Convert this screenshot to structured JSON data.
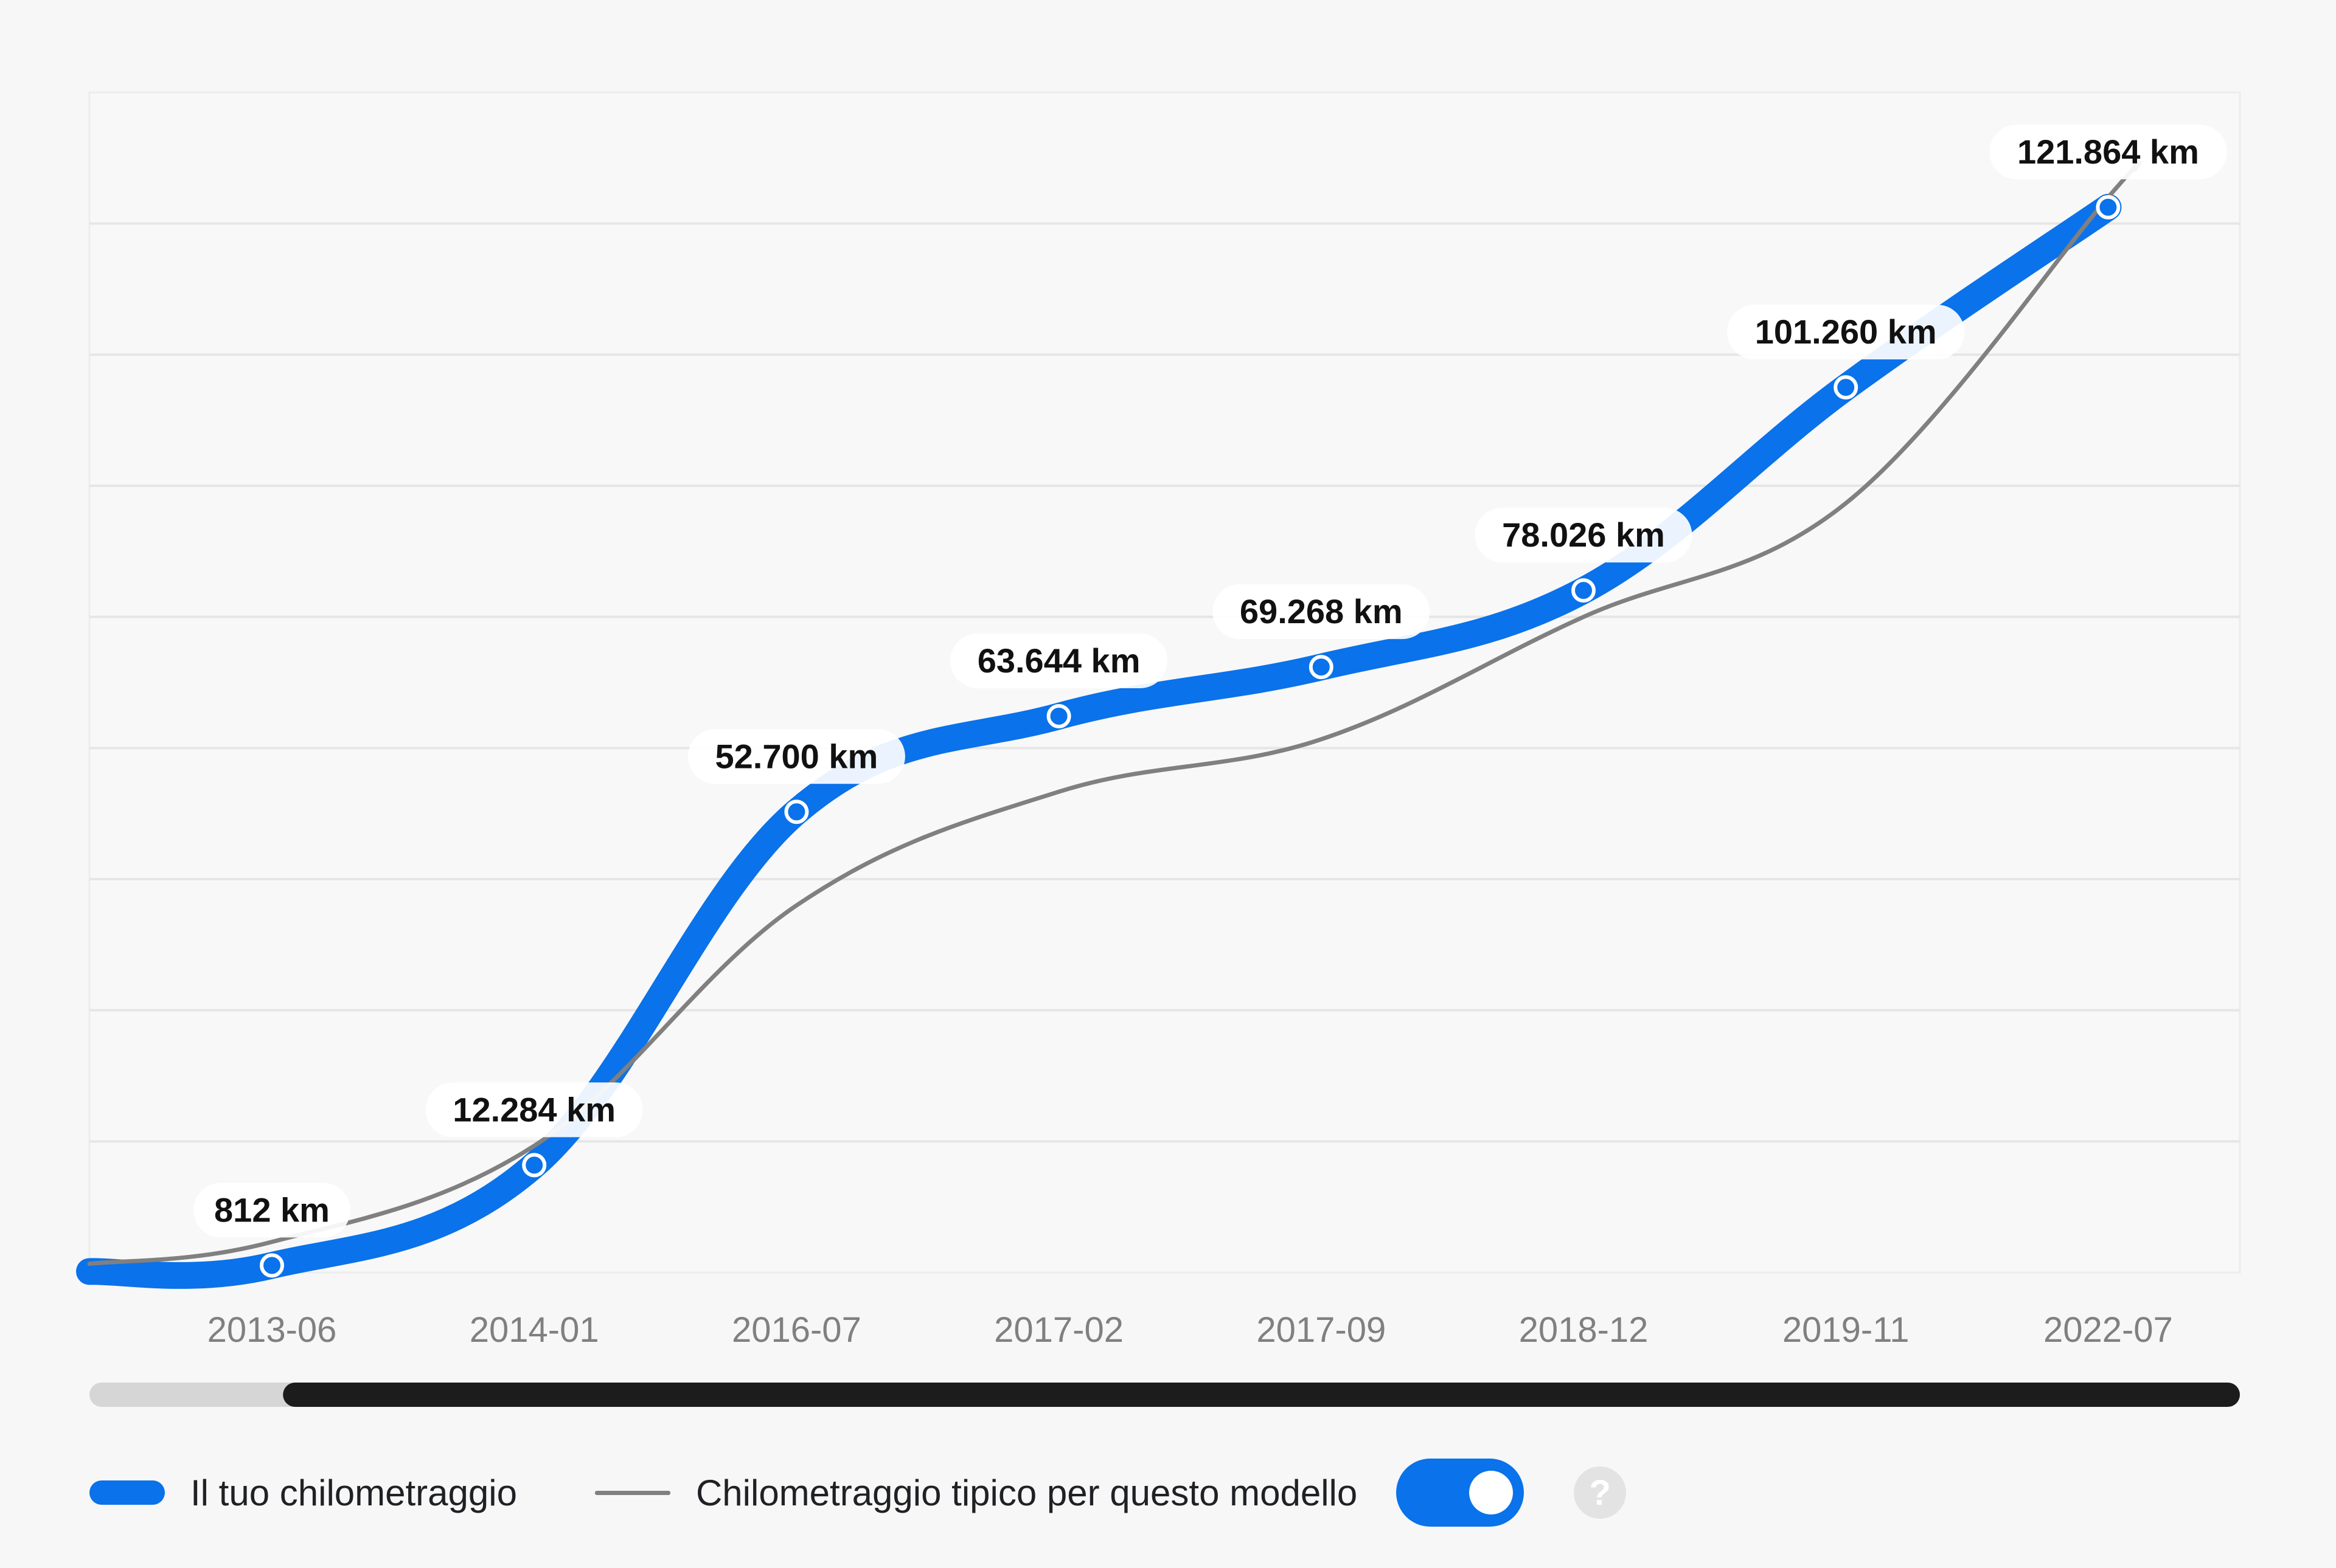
{
  "chart_data": {
    "type": "line",
    "categories": [
      "2013-06",
      "2014-01",
      "2016-07",
      "2017-02",
      "2017-09",
      "2018-12",
      "2019-11",
      "2022-07"
    ],
    "series": [
      {
        "name": "Il tuo chilometraggio",
        "values": [
          812,
          12284,
          52700,
          63644,
          69268,
          78026,
          101260,
          121864
        ],
        "labels": [
          "812 km",
          "12.284 km",
          "52.700 km",
          "63.644 km",
          "69.268 km",
          "78.026 km",
          "101.260 km",
          "121.864 km"
        ],
        "color": "#0a72ea"
      },
      {
        "name": "Chilometraggio tipico per questo modello",
        "values": [
          3500,
          14500,
          42000,
          55000,
          61000,
          75000,
          88000,
          123000
        ],
        "color": "#808080"
      }
    ],
    "ylim": [
      0,
      135000
    ],
    "grid": true,
    "legend_position": "bottom-left"
  },
  "scrollbar": {
    "visible_fraction_start": 0.09,
    "visible_fraction_end": 1.0
  },
  "legend": {
    "series1_label": "Il tuo chilometraggio",
    "series2_label": "Chilometraggio tipico per questo modello",
    "toggle_on": true,
    "help_symbol": "?"
  }
}
